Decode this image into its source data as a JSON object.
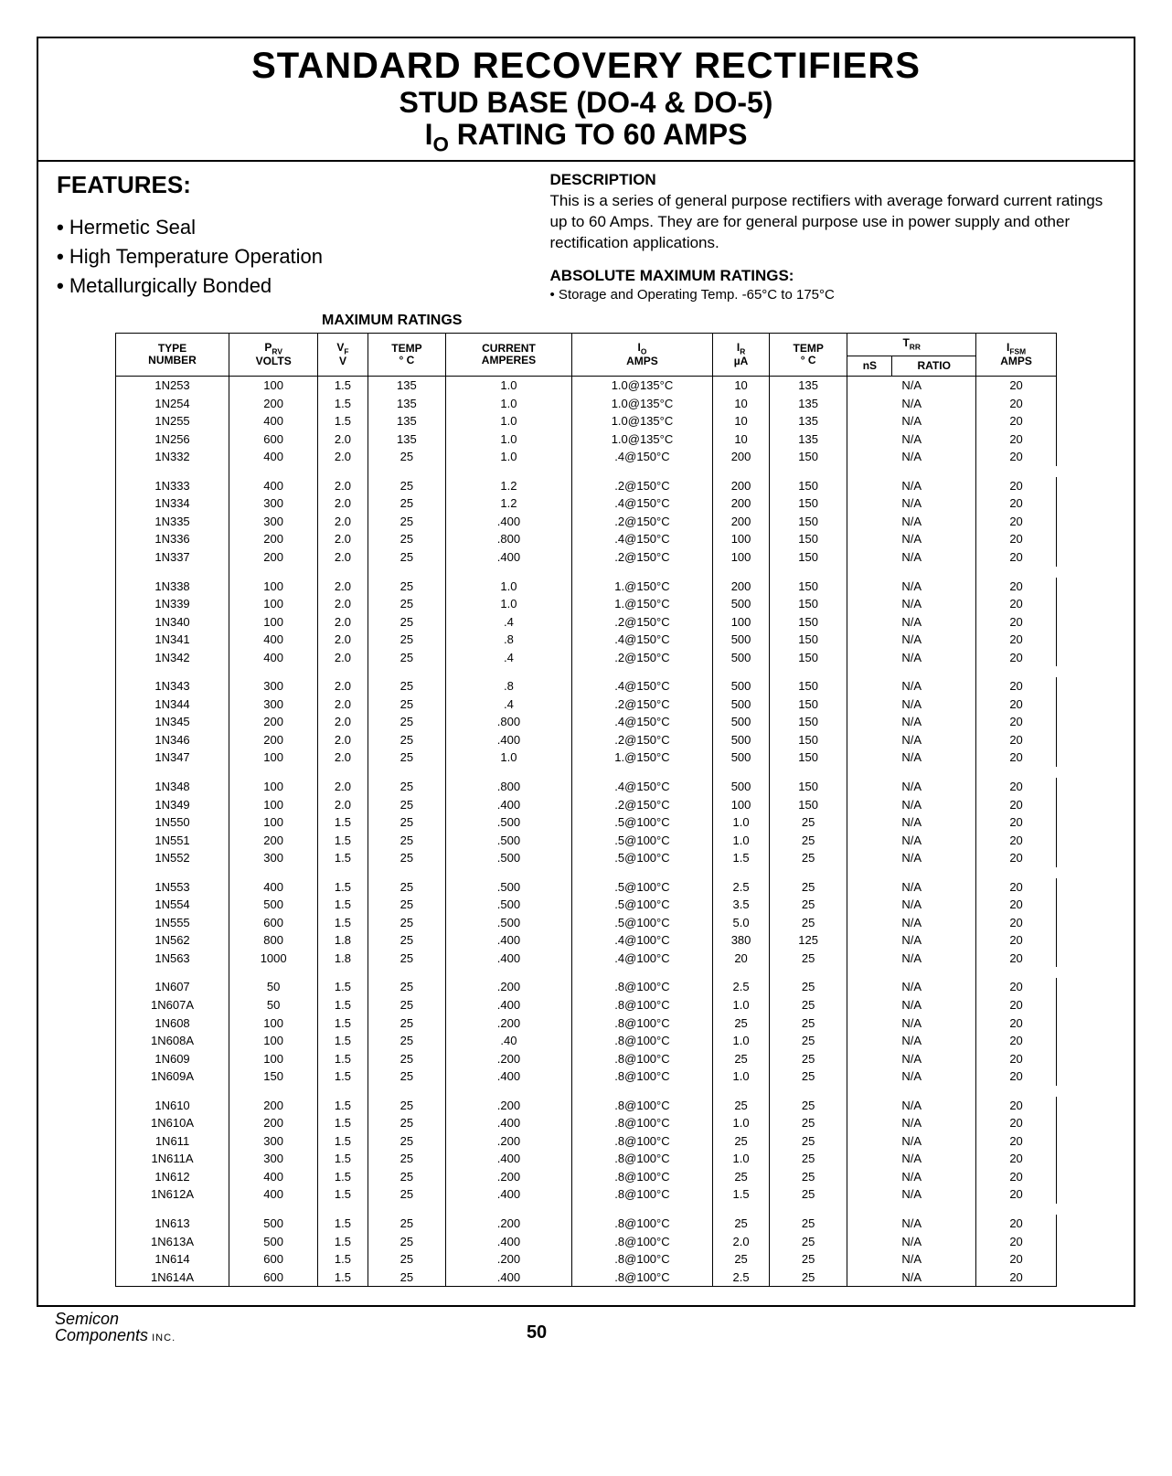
{
  "title": {
    "line1": "STANDARD RECOVERY RECTIFIERS",
    "line2": "STUD BASE (DO-4 & DO-5)",
    "line3_prefix": "I",
    "line3_sub": "O",
    "line3_suffix": " RATING TO 60 AMPS"
  },
  "features": {
    "heading": "FEATURES:",
    "items": [
      "Hermetic Seal",
      "High Temperature Operation",
      "Metallurgically Bonded"
    ]
  },
  "description": {
    "heading": "DESCRIPTION",
    "text": "This is a series of general purpose rectifiers with average forward current ratings up to 60 Amps. They are for general purpose use in power supply and other rectification applications."
  },
  "amr": {
    "heading": "ABSOLUTE MAXIMUM RATINGS:",
    "item": "• Storage and Operating Temp. -65°C to 175°C"
  },
  "max_ratings_heading": "MAXIMUM RATINGS",
  "table": {
    "headers": {
      "type": "TYPE\nNUMBER",
      "prv": "P_RV\nVOLTS",
      "vf": "V_F\nV",
      "temp1": "TEMP\n° C",
      "current": "CURRENT\nAMPERES",
      "io": "I_O\nAMPS",
      "ir": "I_R\nµA",
      "temp2": "TEMP\n° C",
      "trr": "T_RR",
      "trr_ns": "nS",
      "trr_ratio": "RATIO",
      "ifsm": "I_FSM\nAMPS"
    },
    "groups": [
      [
        [
          "1N253",
          "100",
          "1.5",
          "135",
          "1.0",
          "1.0@135°C",
          "10",
          "135",
          "N/A",
          "20"
        ],
        [
          "1N254",
          "200",
          "1.5",
          "135",
          "1.0",
          "1.0@135°C",
          "10",
          "135",
          "N/A",
          "20"
        ],
        [
          "1N255",
          "400",
          "1.5",
          "135",
          "1.0",
          "1.0@135°C",
          "10",
          "135",
          "N/A",
          "20"
        ],
        [
          "1N256",
          "600",
          "2.0",
          "135",
          "1.0",
          "1.0@135°C",
          "10",
          "135",
          "N/A",
          "20"
        ],
        [
          "1N332",
          "400",
          "2.0",
          "25",
          "1.0",
          ".4@150°C",
          "200",
          "150",
          "N/A",
          "20"
        ]
      ],
      [
        [
          "1N333",
          "400",
          "2.0",
          "25",
          "1.2",
          ".2@150°C",
          "200",
          "150",
          "N/A",
          "20"
        ],
        [
          "1N334",
          "300",
          "2.0",
          "25",
          "1.2",
          ".4@150°C",
          "200",
          "150",
          "N/A",
          "20"
        ],
        [
          "1N335",
          "300",
          "2.0",
          "25",
          ".400",
          ".2@150°C",
          "200",
          "150",
          "N/A",
          "20"
        ],
        [
          "1N336",
          "200",
          "2.0",
          "25",
          ".800",
          ".4@150°C",
          "100",
          "150",
          "N/A",
          "20"
        ],
        [
          "1N337",
          "200",
          "2.0",
          "25",
          ".400",
          ".2@150°C",
          "100",
          "150",
          "N/A",
          "20"
        ]
      ],
      [
        [
          "1N338",
          "100",
          "2.0",
          "25",
          "1.0",
          "1.@150°C",
          "200",
          "150",
          "N/A",
          "20"
        ],
        [
          "1N339",
          "100",
          "2.0",
          "25",
          "1.0",
          "1.@150°C",
          "500",
          "150",
          "N/A",
          "20"
        ],
        [
          "1N340",
          "100",
          "2.0",
          "25",
          ".4",
          ".2@150°C",
          "100",
          "150",
          "N/A",
          "20"
        ],
        [
          "1N341",
          "400",
          "2.0",
          "25",
          ".8",
          ".4@150°C",
          "500",
          "150",
          "N/A",
          "20"
        ],
        [
          "1N342",
          "400",
          "2.0",
          "25",
          ".4",
          ".2@150°C",
          "500",
          "150",
          "N/A",
          "20"
        ]
      ],
      [
        [
          "1N343",
          "300",
          "2.0",
          "25",
          ".8",
          ".4@150°C",
          "500",
          "150",
          "N/A",
          "20"
        ],
        [
          "1N344",
          "300",
          "2.0",
          "25",
          ".4",
          ".2@150°C",
          "500",
          "150",
          "N/A",
          "20"
        ],
        [
          "1N345",
          "200",
          "2.0",
          "25",
          ".800",
          ".4@150°C",
          "500",
          "150",
          "N/A",
          "20"
        ],
        [
          "1N346",
          "200",
          "2.0",
          "25",
          ".400",
          ".2@150°C",
          "500",
          "150",
          "N/A",
          "20"
        ],
        [
          "1N347",
          "100",
          "2.0",
          "25",
          "1.0",
          "1.@150°C",
          "500",
          "150",
          "N/A",
          "20"
        ]
      ],
      [
        [
          "1N348",
          "100",
          "2.0",
          "25",
          ".800",
          ".4@150°C",
          "500",
          "150",
          "N/A",
          "20"
        ],
        [
          "1N349",
          "100",
          "2.0",
          "25",
          ".400",
          ".2@150°C",
          "100",
          "150",
          "N/A",
          "20"
        ],
        [
          "1N550",
          "100",
          "1.5",
          "25",
          ".500",
          ".5@100°C",
          "1.0",
          "25",
          "N/A",
          "20"
        ],
        [
          "1N551",
          "200",
          "1.5",
          "25",
          ".500",
          ".5@100°C",
          "1.0",
          "25",
          "N/A",
          "20"
        ],
        [
          "1N552",
          "300",
          "1.5",
          "25",
          ".500",
          ".5@100°C",
          "1.5",
          "25",
          "N/A",
          "20"
        ]
      ],
      [
        [
          "1N553",
          "400",
          "1.5",
          "25",
          ".500",
          ".5@100°C",
          "2.5",
          "25",
          "N/A",
          "20"
        ],
        [
          "1N554",
          "500",
          "1.5",
          "25",
          ".500",
          ".5@100°C",
          "3.5",
          "25",
          "N/A",
          "20"
        ],
        [
          "1N555",
          "600",
          "1.5",
          "25",
          ".500",
          ".5@100°C",
          "5.0",
          "25",
          "N/A",
          "20"
        ],
        [
          "1N562",
          "800",
          "1.8",
          "25",
          ".400",
          ".4@100°C",
          "380",
          "125",
          "N/A",
          "20"
        ],
        [
          "1N563",
          "1000",
          "1.8",
          "25",
          ".400",
          ".4@100°C",
          "20",
          "25",
          "N/A",
          "20"
        ]
      ],
      [
        [
          "1N607",
          "50",
          "1.5",
          "25",
          ".200",
          ".8@100°C",
          "2.5",
          "25",
          "N/A",
          "20"
        ],
        [
          "1N607A",
          "50",
          "1.5",
          "25",
          ".400",
          ".8@100°C",
          "1.0",
          "25",
          "N/A",
          "20"
        ],
        [
          "1N608",
          "100",
          "1.5",
          "25",
          ".200",
          ".8@100°C",
          "25",
          "25",
          "N/A",
          "20"
        ],
        [
          "1N608A",
          "100",
          "1.5",
          "25",
          ".40",
          ".8@100°C",
          "1.0",
          "25",
          "N/A",
          "20"
        ],
        [
          "1N609",
          "100",
          "1.5",
          "25",
          ".200",
          ".8@100°C",
          "25",
          "25",
          "N/A",
          "20"
        ],
        [
          "1N609A",
          "150",
          "1.5",
          "25",
          ".400",
          ".8@100°C",
          "1.0",
          "25",
          "N/A",
          "20"
        ]
      ],
      [
        [
          "1N610",
          "200",
          "1.5",
          "25",
          ".200",
          ".8@100°C",
          "25",
          "25",
          "N/A",
          "20"
        ],
        [
          "1N610A",
          "200",
          "1.5",
          "25",
          ".400",
          ".8@100°C",
          "1.0",
          "25",
          "N/A",
          "20"
        ],
        [
          "1N611",
          "300",
          "1.5",
          "25",
          ".200",
          ".8@100°C",
          "25",
          "25",
          "N/A",
          "20"
        ],
        [
          "1N611A",
          "300",
          "1.5",
          "25",
          ".400",
          ".8@100°C",
          "1.0",
          "25",
          "N/A",
          "20"
        ],
        [
          "1N612",
          "400",
          "1.5",
          "25",
          ".200",
          ".8@100°C",
          "25",
          "25",
          "N/A",
          "20"
        ],
        [
          "1N612A",
          "400",
          "1.5",
          "25",
          ".400",
          ".8@100°C",
          "1.5",
          "25",
          "N/A",
          "20"
        ]
      ],
      [
        [
          "1N613",
          "500",
          "1.5",
          "25",
          ".200",
          ".8@100°C",
          "25",
          "25",
          "N/A",
          "20"
        ],
        [
          "1N613A",
          "500",
          "1.5",
          "25",
          ".400",
          ".8@100°C",
          "2.0",
          "25",
          "N/A",
          "20"
        ],
        [
          "1N614",
          "600",
          "1.5",
          "25",
          ".200",
          ".8@100°C",
          "25",
          "25",
          "N/A",
          "20"
        ],
        [
          "1N614A",
          "600",
          "1.5",
          "25",
          ".400",
          ".8@100°C",
          "2.5",
          "25",
          "N/A",
          "20"
        ]
      ]
    ]
  },
  "footer": {
    "company1": "Semicon",
    "company2": "Components",
    "inc": " INC.",
    "page": "50"
  }
}
